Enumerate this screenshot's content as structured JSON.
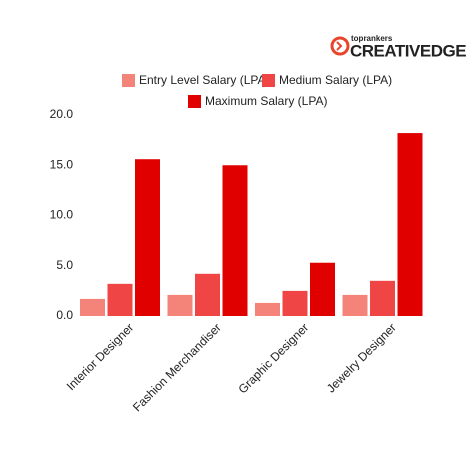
{
  "logo": {
    "tagline": "toprankers",
    "name": "CREATIVEDGE"
  },
  "chart_data": {
    "type": "bar",
    "categories": [
      "Interior Designer",
      "Fashion Merchandiser",
      "Graphic Designer",
      "Jewelry Designer"
    ],
    "series": [
      {
        "name": "Entry Level Salary (LPA)",
        "color": "#f4837a",
        "values": [
          1.7,
          2.1,
          1.3,
          2.1
        ]
      },
      {
        "name": "Medium Salary (LPA)",
        "color": "#f04545",
        "values": [
          3.2,
          4.2,
          2.5,
          3.5
        ]
      },
      {
        "name": "Maximum Salary (LPA)",
        "color": "#e00000",
        "values": [
          15.6,
          15.0,
          5.3,
          18.2
        ]
      }
    ],
    "ylim": [
      0,
      20
    ],
    "yticks": [
      {
        "value": 0,
        "label": "0.0"
      },
      {
        "value": 5,
        "label": "5.0"
      },
      {
        "value": 10,
        "label": "10.0"
      },
      {
        "value": 15,
        "label": "15.0"
      },
      {
        "value": 20,
        "label": "20.0"
      }
    ],
    "grid": false
  }
}
